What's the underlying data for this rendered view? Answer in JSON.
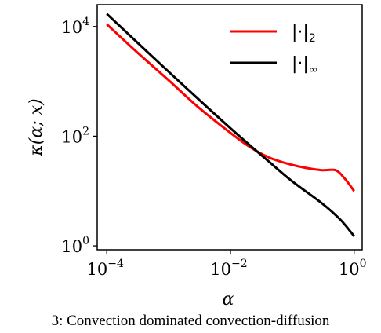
{
  "chart_data": {
    "type": "line",
    "xlabel": "α",
    "ylabel": "κ(α; x)",
    "xscale": "log",
    "yscale": "log",
    "xlim": [
      7e-05,
      1.35
    ],
    "ylim": [
      0.85,
      25000
    ],
    "x_ticks": [
      {
        "base": "10",
        "exp": "−4",
        "value": 0.0001
      },
      {
        "base": "10",
        "exp": "−2",
        "value": 0.01
      },
      {
        "base": "10",
        "exp": "0",
        "value": 1
      }
    ],
    "y_ticks": [
      {
        "base": "10",
        "exp": "0",
        "value": 1
      },
      {
        "base": "10",
        "exp": "2",
        "value": 100
      },
      {
        "base": "10",
        "exp": "4",
        "value": 10000
      }
    ],
    "legend_position": "upper-right",
    "grid": false,
    "series": [
      {
        "name": "|·|",
        "subscript": "2",
        "color": "#ff0000",
        "x": [
          0.0001,
          0.0003,
          0.001,
          0.003,
          0.01,
          0.02,
          0.04,
          0.08,
          0.15,
          0.3,
          0.5,
          0.7,
          1.0
        ],
        "y": [
          11000,
          3500,
          1050,
          340,
          115,
          65,
          42,
          32,
          27,
          24,
          24,
          17,
          10
        ]
      },
      {
        "name": "|·|",
        "subscript": "∞",
        "color": "#000000",
        "x": [
          0.0001,
          0.001,
          0.01,
          0.04,
          0.1,
          0.3,
          0.6,
          1.0
        ],
        "y": [
          17000,
          1500,
          140,
          36,
          15,
          6,
          3,
          1.5
        ]
      }
    ]
  },
  "caption": "3: Convection dominated convection-diffusion"
}
